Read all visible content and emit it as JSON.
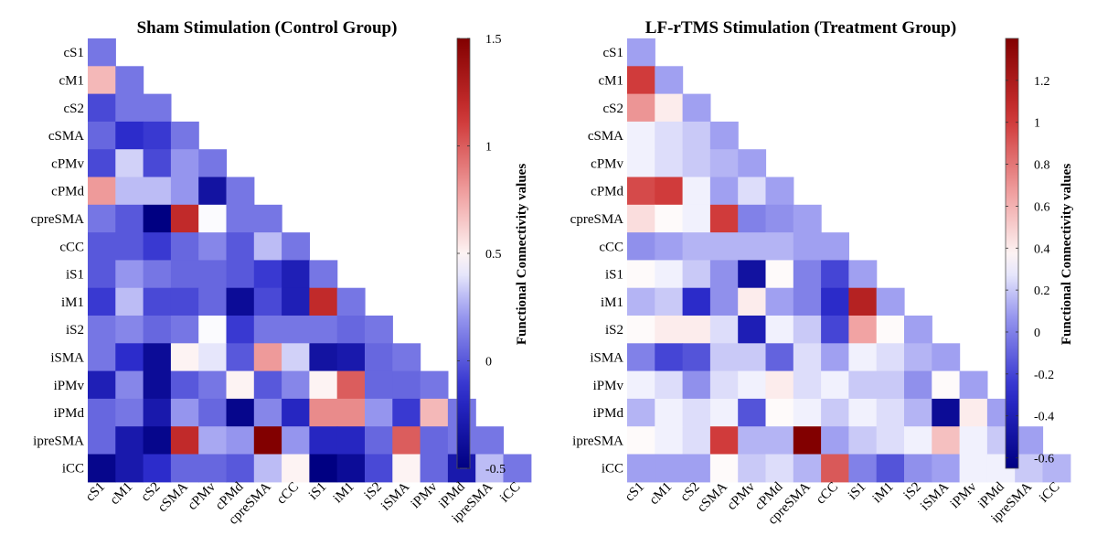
{
  "labels": [
    "cS1",
    "cM1",
    "cS2",
    "cSMA",
    "cPMv",
    "cPMd",
    "cpreSMA",
    "cCC",
    "iS1",
    "iM1",
    "iS2",
    "iSMA",
    "iPMv",
    "iPMd",
    "ipreSMA",
    "iCC"
  ],
  "chart_data": [
    {
      "type": "heatmap",
      "title": "Sham Stimulation (Control Group)",
      "colorbar_label": "Functional Connectivity values",
      "colorbar_ticks": [
        "1.5",
        "1",
        "0.5",
        "0",
        "-0.5"
      ],
      "colorbar_tick_values": [
        1.5,
        1,
        0.5,
        0,
        -0.5
      ],
      "clim": [
        -0.5,
        1.5
      ],
      "grid": false,
      "matrix": [
        [
          0.1
        ],
        [
          0.7,
          0.1
        ],
        [
          -0.05,
          0.1,
          0.1
        ],
        [
          0.05,
          -0.15,
          -0.1,
          0.1
        ],
        [
          -0.05,
          0.35,
          -0.05,
          0.2,
          0.1
        ],
        [
          0.8,
          0.3,
          0.3,
          0.2,
          -0.35,
          0.1
        ],
        [
          0.1,
          0.0,
          -0.5,
          1.2,
          0.45,
          0.1,
          0.1
        ],
        [
          0.0,
          0.0,
          -0.1,
          0.05,
          0.15,
          0.0,
          0.3,
          0.1
        ],
        [
          0.0,
          0.2,
          0.1,
          0.05,
          0.05,
          0.0,
          -0.1,
          -0.25,
          0.1
        ],
        [
          -0.1,
          0.3,
          -0.05,
          -0.05,
          0.05,
          -0.4,
          -0.05,
          -0.25,
          1.2,
          0.1
        ],
        [
          0.1,
          0.15,
          0.05,
          0.1,
          0.45,
          -0.1,
          0.1,
          0.1,
          0.1,
          0.05,
          0.1
        ],
        [
          0.1,
          -0.15,
          -0.4,
          0.5,
          0.4,
          0.0,
          0.8,
          0.35,
          -0.35,
          -0.3,
          0.05,
          0.1
        ],
        [
          -0.25,
          0.15,
          -0.4,
          0.0,
          0.1,
          0.5,
          0.0,
          0.15,
          0.5,
          1.0,
          0.05,
          0.05,
          0.1
        ],
        [
          0.05,
          0.1,
          -0.3,
          0.2,
          0.05,
          -0.45,
          0.15,
          -0.2,
          0.85,
          0.85,
          0.2,
          -0.1,
          0.7,
          0.1
        ],
        [
          0.05,
          -0.3,
          -0.45,
          1.2,
          0.25,
          0.2,
          1.5,
          0.2,
          -0.2,
          -0.2,
          0.05,
          1.0,
          0.05,
          0.1,
          0.1
        ],
        [
          -0.45,
          -0.3,
          -0.15,
          0.05,
          0.05,
          0.0,
          0.3,
          0.5,
          -0.5,
          -0.4,
          -0.05,
          0.5,
          0.05,
          -0.3,
          0.3,
          0.1
        ]
      ]
    },
    {
      "type": "heatmap",
      "title": "LF-rTMS Stimulation (Treatment Group)",
      "colorbar_label": "Functional Connectivity values",
      "colorbar_ticks": [
        "1.2",
        "1",
        "0.8",
        "0.6",
        "0.4",
        "0.2",
        "0",
        "-0.2",
        "-0.4",
        "-0.6"
      ],
      "colorbar_tick_values": [
        1.2,
        1,
        0.8,
        0.6,
        0.4,
        0.2,
        0,
        -0.2,
        -0.4,
        -0.6
      ],
      "clim": [
        -0.65,
        1.4
      ],
      "grid": false,
      "matrix": [
        [
          0.1
        ],
        [
          1.0,
          0.1
        ],
        [
          0.7,
          0.4,
          0.1
        ],
        [
          0.3,
          0.25,
          0.2,
          0.1
        ],
        [
          0.3,
          0.25,
          0.2,
          0.15,
          0.1
        ],
        [
          0.95,
          1.0,
          0.3,
          0.1,
          0.25,
          0.1
        ],
        [
          0.45,
          0.35,
          0.3,
          1.0,
          0.0,
          0.05,
          0.1
        ],
        [
          0.05,
          0.1,
          0.15,
          0.15,
          0.15,
          0.15,
          0.1,
          0.1
        ],
        [
          0.35,
          0.3,
          0.2,
          0.05,
          -0.5,
          0.35,
          0.0,
          -0.2,
          0.1
        ],
        [
          0.15,
          0.2,
          -0.3,
          0.05,
          0.4,
          0.1,
          0.0,
          -0.3,
          1.15,
          0.1
        ],
        [
          0.35,
          0.4,
          0.4,
          0.25,
          -0.4,
          0.3,
          0.2,
          -0.2,
          0.65,
          0.35,
          0.1
        ],
        [
          0.0,
          -0.2,
          -0.15,
          0.2,
          0.2,
          -0.1,
          0.25,
          0.1,
          0.3,
          0.25,
          0.15,
          0.1
        ],
        [
          0.3,
          0.25,
          0.05,
          0.25,
          0.3,
          0.4,
          0.25,
          0.3,
          0.2,
          0.2,
          0.05,
          0.35,
          0.1
        ],
        [
          0.15,
          0.3,
          0.25,
          0.3,
          -0.15,
          0.35,
          0.3,
          0.2,
          0.3,
          0.25,
          0.15,
          -0.55,
          0.4,
          0.1
        ],
        [
          0.35,
          0.3,
          0.25,
          1.0,
          0.15,
          0.15,
          1.4,
          0.1,
          0.2,
          0.25,
          0.3,
          0.55,
          0.3,
          0.2,
          0.1
        ],
        [
          0.1,
          0.1,
          0.1,
          0.35,
          0.2,
          0.25,
          0.15,
          0.9,
          0.0,
          -0.15,
          0.05,
          0.1,
          0.3,
          0.3,
          0.2,
          0.15
        ]
      ]
    }
  ]
}
